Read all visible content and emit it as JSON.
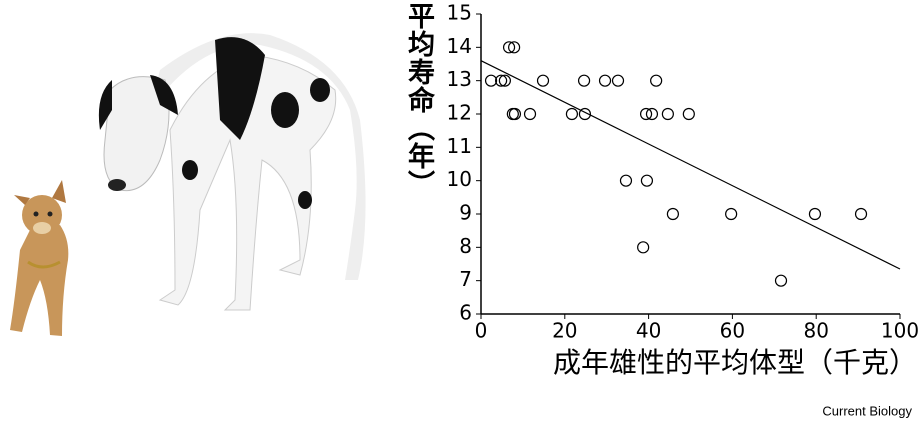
{
  "chart_data": {
    "type": "scatter",
    "x_label": "成年雄性的平均体型（千克）",
    "y_label": "平均寿命（年）",
    "xlim": [
      0,
      100
    ],
    "ylim": [
      6,
      15
    ],
    "xticks": [
      0,
      20,
      40,
      60,
      80,
      100
    ],
    "yticks": [
      6,
      7,
      8,
      9,
      10,
      11,
      12,
      13,
      14,
      15
    ],
    "series": [
      {
        "color": "#000000",
        "marker": "open-circle",
        "x": [
          2.4,
          4.8,
          5.7,
          6.7,
          7.9,
          7.6,
          8.1,
          11.7,
          14.8,
          21.7,
          24.6,
          24.8,
          29.6,
          32.7,
          34.6,
          39.4,
          40.8,
          39.6,
          38.7,
          41.8,
          44.6,
          45.8,
          49.6,
          59.7,
          71.6,
          79.7,
          90.7
        ],
        "values": [
          13,
          13,
          13,
          14,
          14,
          12,
          12,
          12,
          13,
          12,
          13,
          12,
          13,
          13,
          10,
          12,
          12,
          10,
          8,
          13,
          12,
          9,
          12,
          9,
          7,
          9,
          9
        ]
      }
    ],
    "trend": {
      "type": "line",
      "color": "#000000",
      "x": [
        0,
        100
      ],
      "values": [
        13.6,
        7.35
      ]
    }
  },
  "source": "Current Biology"
}
